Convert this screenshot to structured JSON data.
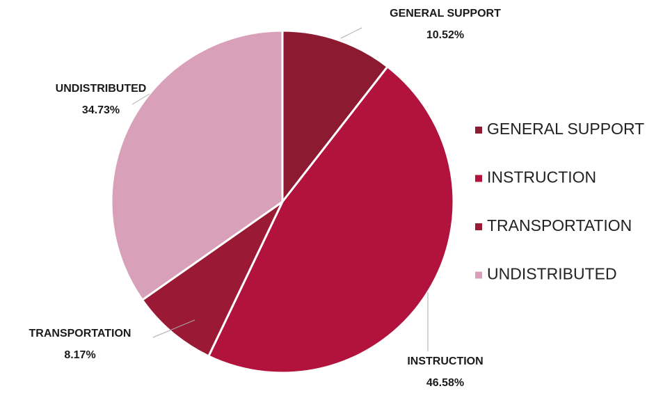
{
  "chart_data": {
    "type": "pie",
    "categories": [
      "GENERAL SUPPORT",
      "INSTRUCTION",
      "TRANSPORTATION",
      "UNDISTRIBUTED"
    ],
    "values": [
      10.52,
      46.58,
      8.17,
      34.73
    ],
    "value_labels": [
      "10.52%",
      "46.58%",
      "8.17%",
      "34.73%"
    ],
    "colors": [
      "#8c1a30",
      "#b1133c",
      "#9a1a36",
      "#d8a0b9"
    ],
    "legend": "right"
  }
}
